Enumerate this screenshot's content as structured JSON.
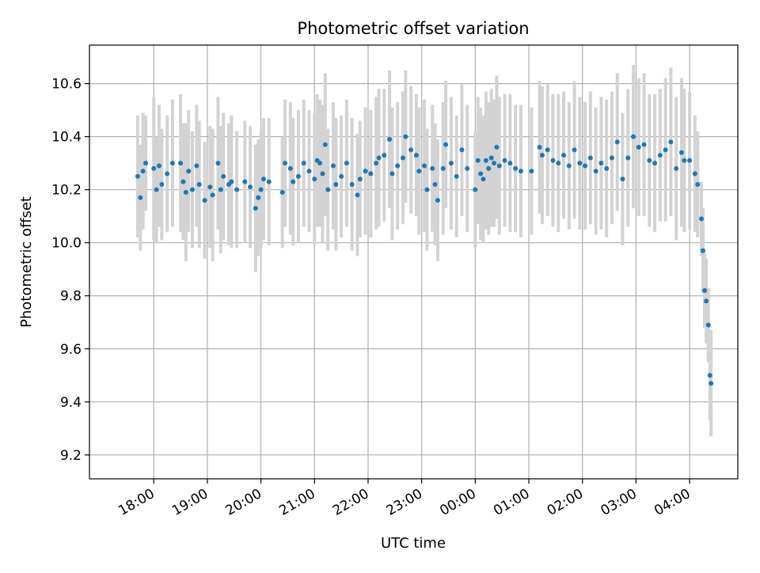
{
  "chart_data": {
    "type": "scatter",
    "title": "Photometric offset variation",
    "xlabel": "UTC time",
    "ylabel": "Photometric offset",
    "xlim_hours": [
      16.8,
      28.9
    ],
    "ylim": [
      9.11,
      10.745
    ],
    "grid": true,
    "legend": "none",
    "x_ticks": [
      {
        "hour": 18,
        "label": "18:00"
      },
      {
        "hour": 19,
        "label": "19:00"
      },
      {
        "hour": 20,
        "label": "20:00"
      },
      {
        "hour": 21,
        "label": "21:00"
      },
      {
        "hour": 22,
        "label": "22:00"
      },
      {
        "hour": 23,
        "label": "23:00"
      },
      {
        "hour": 24,
        "label": "00:00"
      },
      {
        "hour": 25,
        "label": "01:00"
      },
      {
        "hour": 26,
        "label": "02:00"
      },
      {
        "hour": 27,
        "label": "03:00"
      },
      {
        "hour": 28,
        "label": "04:00"
      }
    ],
    "y_ticks": [
      {
        "value": 9.2,
        "label": "9.2"
      },
      {
        "value": 9.4,
        "label": "9.4"
      },
      {
        "value": 9.6,
        "label": "9.6"
      },
      {
        "value": 9.8,
        "label": "9.8"
      },
      {
        "value": 10.0,
        "label": "10.0"
      },
      {
        "value": 10.2,
        "label": "10.2"
      },
      {
        "value": 10.4,
        "label": "10.4"
      },
      {
        "value": 10.6,
        "label": "10.6"
      }
    ],
    "marker_color": "#1f77b4",
    "errorbar_color": "#d3d3d3",
    "series": [
      {
        "name": "offset",
        "points": [
          [
            17.7,
            10.25,
            0.23
          ],
          [
            17.75,
            10.17,
            0.2
          ],
          [
            17.8,
            10.27,
            0.22
          ],
          [
            17.85,
            10.3,
            0.18
          ],
          [
            18.0,
            10.28,
            0.27
          ],
          [
            18.05,
            10.2,
            0.2
          ],
          [
            18.1,
            10.29,
            0.23
          ],
          [
            18.15,
            10.22,
            0.21
          ],
          [
            18.25,
            10.26,
            0.22
          ],
          [
            18.35,
            10.3,
            0.24
          ],
          [
            18.5,
            10.3,
            0.26
          ],
          [
            18.55,
            10.23,
            0.22
          ],
          [
            18.6,
            10.19,
            0.26
          ],
          [
            18.65,
            10.27,
            0.23
          ],
          [
            18.72,
            10.2,
            0.22
          ],
          [
            18.8,
            10.29,
            0.23
          ],
          [
            18.85,
            10.22,
            0.24
          ],
          [
            18.95,
            10.16,
            0.22
          ],
          [
            19.05,
            10.21,
            0.23
          ],
          [
            19.1,
            10.18,
            0.25
          ],
          [
            19.2,
            10.3,
            0.25
          ],
          [
            19.25,
            10.2,
            0.24
          ],
          [
            19.3,
            10.25,
            0.24
          ],
          [
            19.4,
            10.22,
            0.23
          ],
          [
            19.45,
            10.23,
            0.25
          ],
          [
            19.55,
            10.2,
            0.22
          ],
          [
            19.7,
            10.23,
            0.23
          ],
          [
            19.8,
            10.21,
            0.23
          ],
          [
            19.9,
            10.13,
            0.24
          ],
          [
            19.95,
            10.17,
            0.22
          ],
          [
            20.0,
            10.2,
            0.22
          ],
          [
            20.05,
            10.24,
            0.23
          ],
          [
            20.15,
            10.23,
            0.24
          ],
          [
            20.4,
            10.19,
            0.21
          ],
          [
            20.45,
            10.3,
            0.24
          ],
          [
            20.55,
            10.28,
            0.25
          ],
          [
            20.6,
            10.23,
            0.24
          ],
          [
            20.7,
            10.25,
            0.25
          ],
          [
            20.8,
            10.3,
            0.24
          ],
          [
            20.9,
            10.27,
            0.23
          ],
          [
            21.0,
            10.24,
            0.25
          ],
          [
            21.05,
            10.31,
            0.25
          ],
          [
            21.1,
            10.3,
            0.24
          ],
          [
            21.15,
            10.26,
            0.26
          ],
          [
            21.2,
            10.37,
            0.27
          ],
          [
            21.25,
            10.2,
            0.23
          ],
          [
            21.35,
            10.29,
            0.24
          ],
          [
            21.4,
            10.22,
            0.25
          ],
          [
            21.5,
            10.25,
            0.23
          ],
          [
            21.6,
            10.3,
            0.24
          ],
          [
            21.7,
            10.22,
            0.25
          ],
          [
            21.8,
            10.18,
            0.23
          ],
          [
            21.85,
            10.24,
            0.22
          ],
          [
            21.95,
            10.27,
            0.24
          ],
          [
            22.05,
            10.26,
            0.24
          ],
          [
            22.15,
            10.3,
            0.25
          ],
          [
            22.2,
            10.32,
            0.26
          ],
          [
            22.3,
            10.33,
            0.25
          ],
          [
            22.4,
            10.39,
            0.26
          ],
          [
            22.45,
            10.26,
            0.25
          ],
          [
            22.55,
            10.29,
            0.24
          ],
          [
            22.65,
            10.32,
            0.25
          ],
          [
            22.7,
            10.4,
            0.25
          ],
          [
            22.8,
            10.35,
            0.24
          ],
          [
            22.9,
            10.33,
            0.23
          ],
          [
            22.95,
            10.27,
            0.24
          ],
          [
            23.05,
            10.29,
            0.25
          ],
          [
            23.1,
            10.2,
            0.23
          ],
          [
            23.2,
            10.28,
            0.24
          ],
          [
            23.25,
            10.22,
            0.23
          ],
          [
            23.3,
            10.16,
            0.23
          ],
          [
            23.4,
            10.28,
            0.25
          ],
          [
            23.45,
            10.37,
            0.24
          ],
          [
            23.55,
            10.3,
            0.25
          ],
          [
            23.65,
            10.25,
            0.23
          ],
          [
            23.75,
            10.35,
            0.25
          ],
          [
            23.85,
            10.28,
            0.24
          ],
          [
            24.0,
            10.2,
            0.22
          ],
          [
            24.05,
            10.31,
            0.24
          ],
          [
            24.1,
            10.26,
            0.25
          ],
          [
            24.15,
            10.24,
            0.24
          ],
          [
            24.2,
            10.31,
            0.26
          ],
          [
            24.25,
            10.28,
            0.25
          ],
          [
            24.3,
            10.32,
            0.26
          ],
          [
            24.35,
            10.3,
            0.24
          ],
          [
            24.4,
            10.36,
            0.27
          ],
          [
            24.45,
            10.29,
            0.26
          ],
          [
            24.55,
            10.31,
            0.25
          ],
          [
            24.65,
            10.3,
            0.26
          ],
          [
            24.75,
            10.28,
            0.24
          ],
          [
            24.85,
            10.27,
            0.25
          ],
          [
            25.05,
            10.27,
            0.24
          ],
          [
            25.2,
            10.36,
            0.25
          ],
          [
            25.25,
            10.33,
            0.26
          ],
          [
            25.35,
            10.35,
            0.25
          ],
          [
            25.45,
            10.31,
            0.25
          ],
          [
            25.55,
            10.3,
            0.26
          ],
          [
            25.65,
            10.33,
            0.24
          ],
          [
            25.75,
            10.29,
            0.24
          ],
          [
            25.85,
            10.35,
            0.26
          ],
          [
            25.95,
            10.3,
            0.25
          ],
          [
            26.05,
            10.29,
            0.24
          ],
          [
            26.15,
            10.32,
            0.25
          ],
          [
            26.25,
            10.27,
            0.24
          ],
          [
            26.35,
            10.3,
            0.25
          ],
          [
            26.45,
            10.28,
            0.26
          ],
          [
            26.55,
            10.32,
            0.25
          ],
          [
            26.65,
            10.38,
            0.26
          ],
          [
            26.75,
            10.24,
            0.25
          ],
          [
            26.85,
            10.32,
            0.26
          ],
          [
            26.95,
            10.4,
            0.27
          ],
          [
            27.05,
            10.36,
            0.26
          ],
          [
            27.15,
            10.37,
            0.27
          ],
          [
            27.25,
            10.31,
            0.25
          ],
          [
            27.35,
            10.3,
            0.26
          ],
          [
            27.45,
            10.33,
            0.25
          ],
          [
            27.55,
            10.35,
            0.27
          ],
          [
            27.65,
            10.38,
            0.28
          ],
          [
            27.75,
            10.28,
            0.27
          ],
          [
            27.85,
            10.34,
            0.28
          ],
          [
            27.9,
            10.31,
            0.27
          ],
          [
            28.0,
            10.31,
            0.26
          ],
          [
            28.1,
            10.26,
            0.22
          ],
          [
            28.15,
            10.22,
            0.2
          ],
          [
            28.22,
            10.09,
            0.14
          ],
          [
            28.25,
            9.97,
            0.16
          ],
          [
            28.28,
            9.82,
            0.14
          ],
          [
            28.31,
            9.78,
            0.16
          ],
          [
            28.35,
            9.69,
            0.14
          ],
          [
            28.38,
            9.5,
            0.17
          ],
          [
            28.4,
            9.47,
            0.2
          ]
        ]
      }
    ]
  }
}
